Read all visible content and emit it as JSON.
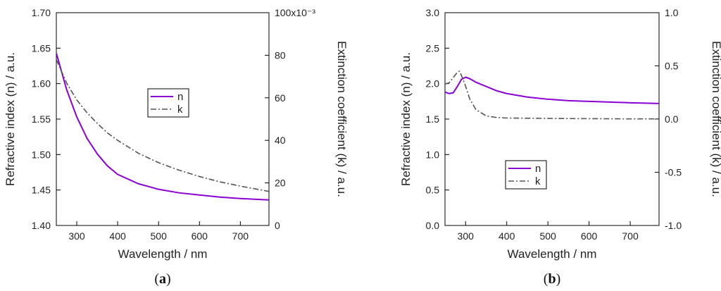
{
  "chart_data": [
    {
      "type": "line",
      "panel_label": "a",
      "xlabel": "Wavelength / nm",
      "ylabel_left": "Refractive index (n) / a.u.",
      "ylabel_right": "Extinction coefficient (k) / a.u.",
      "xlim": [
        250,
        770
      ],
      "ylim_left": [
        1.4,
        1.7
      ],
      "ylim_right": [
        0,
        100
      ],
      "x_ticks": [
        300,
        400,
        500,
        600,
        700
      ],
      "y_left_ticks": [
        "1.40",
        "1.45",
        "1.50",
        "1.55",
        "1.60",
        "1.65",
        "1.70"
      ],
      "y_right_ticks": [
        "0",
        "20",
        "40",
        "60",
        "80",
        "100x10⁻³"
      ],
      "legend": [
        "n",
        "k"
      ],
      "legend_position": "center",
      "series": [
        {
          "name": "n",
          "axis": "left",
          "color": "#8B00D6",
          "style": "solid",
          "x": [
            250,
            275,
            300,
            325,
            350,
            375,
            400,
            450,
            500,
            550,
            600,
            650,
            700,
            770
          ],
          "y": [
            1.643,
            1.592,
            1.553,
            1.523,
            1.501,
            1.484,
            1.472,
            1.459,
            1.451,
            1.446,
            1.443,
            1.44,
            1.438,
            1.436
          ]
        },
        {
          "name": "k",
          "axis": "right",
          "color": "#555555",
          "style": "dash-dot",
          "x": [
            250,
            275,
            300,
            325,
            350,
            375,
            400,
            450,
            500,
            550,
            600,
            650,
            700,
            770
          ],
          "y": [
            78,
            67,
            59,
            53,
            48,
            43.5,
            40,
            34,
            29.5,
            26,
            23,
            20.5,
            18.5,
            16
          ]
        }
      ]
    },
    {
      "type": "line",
      "panel_label": "b",
      "xlabel": "Wavelength / nm",
      "ylabel_left": "Refractive index (n) / a.u.",
      "ylabel_right": "Extinction coefficient (k) / a.u.",
      "xlim": [
        250,
        770
      ],
      "ylim_left": [
        0.0,
        3.0
      ],
      "ylim_right": [
        -1.0,
        1.0
      ],
      "x_ticks": [
        300,
        400,
        500,
        600,
        700
      ],
      "y_left_ticks": [
        "0.0",
        "0.5",
        "1.0",
        "1.5",
        "2.0",
        "2.5",
        "3.0"
      ],
      "y_right_ticks": [
        "-1.0",
        "-0.5",
        "0.0",
        "0.5",
        "1.0"
      ],
      "legend": [
        "n",
        "k"
      ],
      "legend_position": "bottom-left",
      "series": [
        {
          "name": "n",
          "axis": "left",
          "color": "#8B00D6",
          "style": "solid",
          "x": [
            250,
            260,
            270,
            280,
            290,
            300,
            310,
            325,
            350,
            375,
            400,
            450,
            500,
            550,
            600,
            650,
            700,
            770
          ],
          "y": [
            1.88,
            1.86,
            1.87,
            1.96,
            2.06,
            2.09,
            2.07,
            2.02,
            1.96,
            1.9,
            1.86,
            1.81,
            1.78,
            1.76,
            1.75,
            1.74,
            1.73,
            1.72
          ]
        },
        {
          "name": "k",
          "axis": "right",
          "color": "#555555",
          "style": "dash-dot",
          "x": [
            250,
            260,
            270,
            280,
            285,
            290,
            300,
            310,
            325,
            350,
            375,
            400,
            450,
            500,
            600,
            700,
            770
          ],
          "y": [
            0.33,
            0.34,
            0.39,
            0.44,
            0.45,
            0.41,
            0.31,
            0.19,
            0.09,
            0.03,
            0.015,
            0.01,
            0.008,
            0.006,
            0.004,
            0.002,
            0.002
          ]
        }
      ]
    }
  ]
}
